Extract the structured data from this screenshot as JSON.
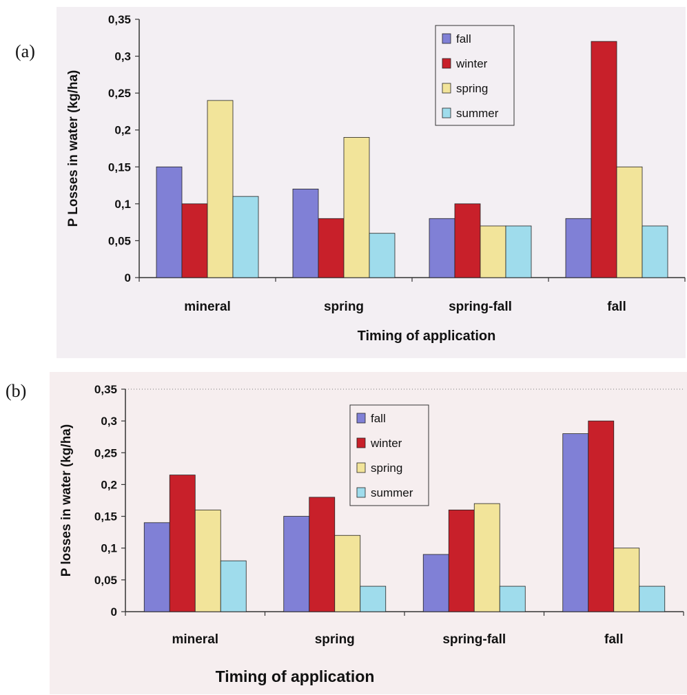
{
  "panels": [
    {
      "label": "(a)"
    },
    {
      "label": "(b)"
    }
  ],
  "colors": {
    "fall": "#8080d6",
    "winter": "#c8202a",
    "spring": "#f2e49a",
    "summer": "#9fdcec",
    "background_a": "#f3eff3",
    "background_b": "#f6eeef"
  },
  "chart_data": [
    {
      "type": "bar",
      "title": "",
      "xlabel": "Timing of application",
      "ylabel": "P Losses in water (kg/ha)",
      "categories": [
        "mineral",
        "spring",
        "spring-fall",
        "fall"
      ],
      "ylim": [
        0,
        0.35
      ],
      "yticks": [
        "0",
        "0,05",
        "0,1",
        "0,15",
        "0,2",
        "0,25",
        "0,3",
        "0,35"
      ],
      "legend_position": "top-center",
      "grid": false,
      "series": [
        {
          "name": "fall",
          "values": [
            0.15,
            0.12,
            0.08,
            0.08
          ]
        },
        {
          "name": "winter",
          "values": [
            0.1,
            0.08,
            0.1,
            0.32
          ]
        },
        {
          "name": "spring",
          "values": [
            0.24,
            0.19,
            0.07,
            0.15
          ]
        },
        {
          "name": "summer",
          "values": [
            0.11,
            0.06,
            0.07,
            0.07
          ]
        }
      ]
    },
    {
      "type": "bar",
      "title": "",
      "xlabel": "Timing of application",
      "ylabel": "P losses in water (kg/ha)",
      "categories": [
        "mineral",
        "spring",
        "spring-fall",
        "fall"
      ],
      "ylim": [
        0,
        0.35
      ],
      "yticks": [
        "0",
        "0,05",
        "0,1",
        "0,15",
        "0,2",
        "0,25",
        "0,3",
        "0,35"
      ],
      "legend_position": "top-center",
      "grid": false,
      "series": [
        {
          "name": "fall",
          "values": [
            0.14,
            0.15,
            0.09,
            0.28
          ]
        },
        {
          "name": "winter",
          "values": [
            0.215,
            0.18,
            0.16,
            0.3
          ]
        },
        {
          "name": "spring",
          "values": [
            0.16,
            0.12,
            0.17,
            0.1
          ]
        },
        {
          "name": "summer",
          "values": [
            0.08,
            0.04,
            0.04,
            0.04
          ]
        }
      ]
    }
  ]
}
